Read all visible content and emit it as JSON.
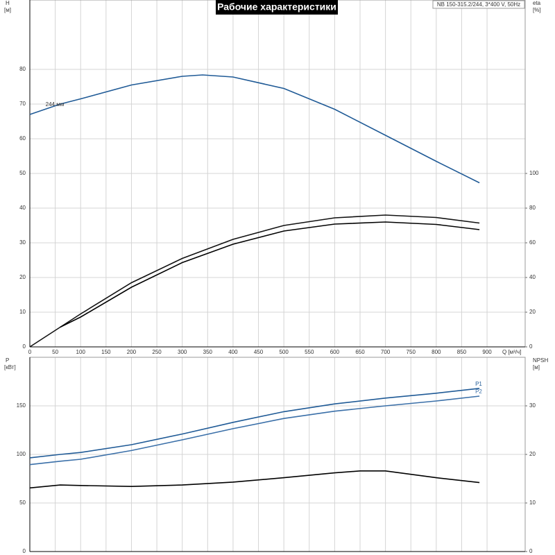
{
  "chart_data": [
    {
      "type": "line",
      "title": "Рабочие характеристики",
      "subtitle": "NB 150-315.2/244, 3*400 V, 50Hz",
      "xlabel": "Q [м³/ч]",
      "ylabel": "H",
      "ylabel_unit": "[м]",
      "y2label": "eta",
      "y2label_unit": "[%]",
      "annotations": [
        "244 мм"
      ],
      "xlim": [
        0,
        975
      ],
      "xticks": [
        0,
        50,
        100,
        150,
        200,
        250,
        300,
        350,
        400,
        450,
        500,
        550,
        600,
        650,
        700,
        750,
        800,
        850,
        900
      ],
      "ylim": [
        0,
        100
      ],
      "yticks": [
        0,
        10,
        20,
        30,
        40,
        50,
        60,
        70,
        80
      ],
      "y2lim": [
        0,
        200
      ],
      "y2ticks": [
        0,
        20,
        40,
        60,
        80,
        100
      ],
      "grid": true,
      "series": [
        {
          "color": "#1f5a96",
          "x": [
            0,
            60,
            100,
            200,
            300,
            340,
            400,
            500,
            600,
            700,
            800,
            885
          ],
          "values": [
            67,
            70,
            71.5,
            75.5,
            78,
            78.4,
            77.8,
            74.5,
            68.5,
            61,
            53.5,
            47.3
          ]
        },
        {
          "color": "#111111",
          "axis": "y2",
          "x": [
            0,
            100,
            200,
            300,
            400,
            500,
            600,
            700,
            800,
            885
          ],
          "values": [
            0,
            19,
            37,
            51,
            62,
            70,
            74.4,
            76,
            74.6,
            71.4
          ]
        },
        {
          "color": "#000000",
          "axis": "y2",
          "x": [
            60,
            100,
            200,
            300,
            400,
            500,
            600,
            700,
            800,
            885
          ],
          "values": [
            11.4,
            17.2,
            34.4,
            48.6,
            59.2,
            66.8,
            70.8,
            72,
            70.6,
            67.6
          ]
        }
      ]
    },
    {
      "type": "line",
      "ylabel": "P",
      "ylabel_unit": "[кВт]",
      "y2label": "NPSH",
      "y2label_unit": "[м]",
      "ylim": [
        0,
        200
      ],
      "yticks": [
        0,
        50,
        100,
        150
      ],
      "y2lim": [
        0,
        40
      ],
      "y2ticks": [
        0,
        10,
        20,
        30
      ],
      "series": [
        {
          "name": "P1",
          "color": "#1f5a96",
          "x": [
            0,
            60,
            100,
            200,
            300,
            400,
            500,
            600,
            700,
            800,
            885
          ],
          "values": [
            96.5,
            100,
            102,
            110,
            121,
            133,
            144,
            152,
            158,
            163,
            168
          ]
        },
        {
          "name": "P2",
          "color": "#3a6fa8",
          "x": [
            0,
            60,
            100,
            200,
            300,
            400,
            500,
            600,
            700,
            800,
            885
          ],
          "values": [
            89.5,
            93,
            95,
            104,
            115,
            126.5,
            137,
            144.5,
            150,
            155,
            160
          ]
        },
        {
          "color": "#000000",
          "axis": "y2",
          "x": [
            0,
            60,
            100,
            200,
            300,
            400,
            500,
            600,
            650,
            700,
            800,
            885
          ],
          "values": [
            13.1,
            13.7,
            13.6,
            13.4,
            13.7,
            14.3,
            15.2,
            16.2,
            16.6,
            16.6,
            15.2,
            14.2
          ]
        }
      ]
    }
  ]
}
